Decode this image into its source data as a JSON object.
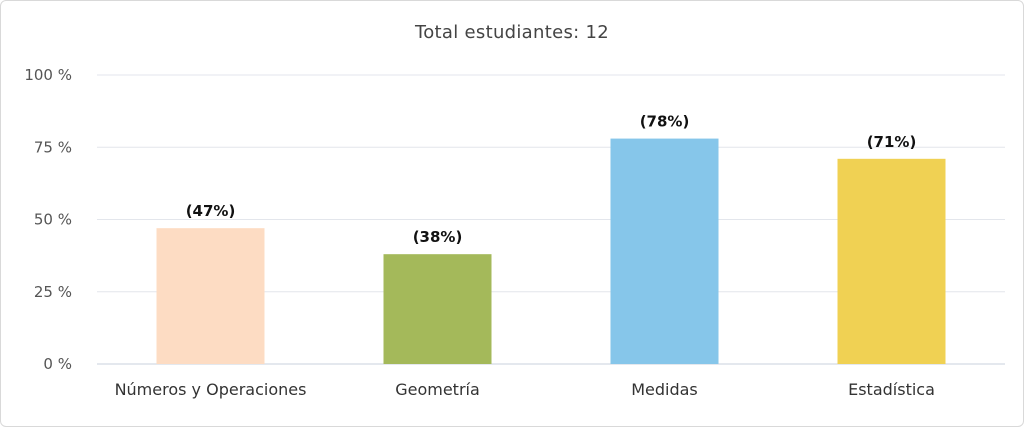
{
  "chart_data": {
    "type": "bar",
    "title": "Total estudiantes: 12",
    "categories": [
      "Números y Operaciones",
      "Geometría",
      "Medidas",
      "Estadística"
    ],
    "values": [
      47,
      38,
      78,
      71
    ],
    "data_labels": [
      "(47%)",
      "(38%)",
      "(78%)",
      "(71%)"
    ],
    "colors": [
      "#fddcc3",
      "#a4b95a",
      "#86c6ea",
      "#f0d153"
    ],
    "ylim": [
      0,
      100
    ],
    "yticks": [
      0,
      25,
      50,
      75,
      100
    ],
    "ytick_labels": [
      "0 %",
      "25 %",
      "50 %",
      "75 %",
      "100 %"
    ],
    "xlabel": "",
    "ylabel": "",
    "grid": true,
    "legend": "none"
  }
}
